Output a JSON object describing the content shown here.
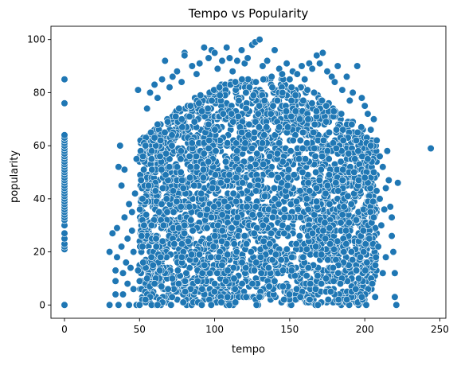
{
  "chart_data": {
    "type": "scatter",
    "title": "Tempo vs Popularity",
    "xlabel": "tempo",
    "ylabel": "popularity",
    "xlim": [
      -9,
      254
    ],
    "ylim": [
      -5,
      105
    ],
    "xticks": [
      0,
      50,
      100,
      150,
      200,
      250
    ],
    "yticks": [
      0,
      20,
      40,
      60,
      80,
      100
    ],
    "grid": false,
    "point_color": "#1f77b4",
    "point_edge_color": "#ffffff",
    "series": [
      {
        "points": [
          [
            0,
            0
          ],
          [
            0,
            21
          ],
          [
            0,
            22
          ],
          [
            0,
            23
          ],
          [
            0,
            25
          ],
          [
            0,
            27
          ],
          [
            0,
            30
          ],
          [
            0,
            32
          ],
          [
            0,
            33
          ],
          [
            0,
            34
          ],
          [
            0,
            35
          ],
          [
            0,
            36
          ],
          [
            0,
            37
          ],
          [
            0,
            38
          ],
          [
            0,
            39
          ],
          [
            0,
            40
          ],
          [
            0,
            41
          ],
          [
            0,
            42
          ],
          [
            0,
            43
          ],
          [
            0,
            44
          ],
          [
            0,
            45
          ],
          [
            0,
            46
          ],
          [
            0,
            47
          ],
          [
            0,
            48
          ],
          [
            0,
            49
          ],
          [
            0,
            50
          ],
          [
            0,
            51
          ],
          [
            0,
            52
          ],
          [
            0,
            53
          ],
          [
            0,
            54
          ],
          [
            0,
            55
          ],
          [
            0,
            56
          ],
          [
            0,
            57
          ],
          [
            0,
            58
          ],
          [
            0,
            59
          ],
          [
            0,
            60
          ],
          [
            0,
            61
          ],
          [
            0,
            62
          ],
          [
            0,
            63
          ],
          [
            0,
            64
          ],
          [
            0,
            76
          ],
          [
            0,
            85
          ],
          [
            30,
            0
          ],
          [
            30,
            20
          ],
          [
            32,
            27
          ],
          [
            34,
            4
          ],
          [
            34,
            9
          ],
          [
            34,
            13
          ],
          [
            35,
            18
          ],
          [
            35,
            29
          ],
          [
            36,
            0
          ],
          [
            36,
            52
          ],
          [
            37,
            60
          ],
          [
            38,
            45
          ],
          [
            38,
            22
          ],
          [
            39,
            12
          ],
          [
            39,
            4
          ],
          [
            40,
            51
          ],
          [
            40,
            33
          ],
          [
            41,
            16
          ],
          [
            42,
            8
          ],
          [
            42,
            25
          ],
          [
            43,
            38
          ],
          [
            43,
            0
          ],
          [
            44,
            14
          ],
          [
            45,
            28
          ],
          [
            45,
            35
          ],
          [
            46,
            6
          ],
          [
            46,
            20
          ],
          [
            47,
            42
          ],
          [
            48,
            0
          ],
          [
            48,
            55
          ],
          [
            49,
            81
          ],
          [
            49,
            13
          ],
          [
            50,
            0
          ],
          [
            51,
            47
          ],
          [
            52,
            22
          ],
          [
            53,
            61
          ],
          [
            55,
            74
          ],
          [
            57,
            80
          ],
          [
            60,
            83
          ],
          [
            62,
            78
          ],
          [
            65,
            85
          ],
          [
            67,
            92
          ],
          [
            70,
            82
          ],
          [
            72,
            86
          ],
          [
            75,
            88
          ],
          [
            78,
            84
          ],
          [
            80,
            95
          ],
          [
            80,
            94
          ],
          [
            85,
            90
          ],
          [
            88,
            87
          ],
          [
            90,
            91
          ],
          [
            93,
            97
          ],
          [
            96,
            93
          ],
          [
            98,
            96
          ],
          [
            100,
            95
          ],
          [
            102,
            89
          ],
          [
            105,
            92
          ],
          [
            108,
            97
          ],
          [
            110,
            93
          ],
          [
            112,
            88
          ],
          [
            115,
            92
          ],
          [
            118,
            96
          ],
          [
            120,
            91
          ],
          [
            122,
            93
          ],
          [
            125,
            98
          ],
          [
            127,
            99
          ],
          [
            130,
            100
          ],
          [
            132,
            90
          ],
          [
            135,
            92
          ],
          [
            138,
            86
          ],
          [
            140,
            96
          ],
          [
            143,
            89
          ],
          [
            145,
            87
          ],
          [
            148,
            91
          ],
          [
            150,
            85
          ],
          [
            152,
            88
          ],
          [
            155,
            87
          ],
          [
            158,
            90
          ],
          [
            160,
            85
          ],
          [
            163,
            91
          ],
          [
            165,
            89
          ],
          [
            168,
            94
          ],
          [
            170,
            91
          ],
          [
            172,
            95
          ],
          [
            175,
            88
          ],
          [
            178,
            86
          ],
          [
            180,
            84
          ],
          [
            182,
            90
          ],
          [
            185,
            81
          ],
          [
            188,
            86
          ],
          [
            190,
            77
          ],
          [
            192,
            80
          ],
          [
            195,
            90
          ],
          [
            198,
            78
          ],
          [
            200,
            75
          ],
          [
            202,
            72
          ],
          [
            204,
            66
          ],
          [
            206,
            70
          ],
          [
            208,
            62
          ],
          [
            210,
            56
          ],
          [
            212,
            52
          ],
          [
            214,
            44
          ],
          [
            215,
            58
          ],
          [
            216,
            47
          ],
          [
            217,
            37
          ],
          [
            218,
            26
          ],
          [
            218,
            33
          ],
          [
            219,
            20
          ],
          [
            220,
            12
          ],
          [
            220,
            3
          ],
          [
            221,
            0
          ],
          [
            222,
            46
          ],
          [
            244,
            59
          ],
          [
            205,
            8
          ],
          [
            207,
            15
          ],
          [
            209,
            22
          ],
          [
            211,
            30
          ],
          [
            213,
            36
          ],
          [
            214,
            18
          ],
          [
            212,
            12
          ],
          [
            210,
            40
          ],
          [
            206,
            33
          ],
          [
            203,
            25
          ],
          [
            198,
            3
          ],
          [
            201,
            0
          ],
          [
            196,
            10
          ],
          [
            194,
            6
          ],
          [
            197,
            18
          ],
          [
            199,
            28
          ],
          [
            200,
            48
          ],
          [
            202,
            55
          ],
          [
            204,
            60
          ],
          [
            206,
            50
          ],
          [
            55,
            10
          ],
          [
            57,
            3
          ],
          [
            59,
            15
          ],
          [
            61,
            25
          ],
          [
            63,
            35
          ],
          [
            56,
            45
          ],
          [
            58,
            55
          ],
          [
            60,
            63
          ],
          [
            62,
            68
          ],
          [
            54,
            60
          ],
          [
            52,
            40
          ],
          [
            53,
            30
          ],
          [
            54,
            2
          ],
          [
            58,
            0
          ],
          [
            60,
            8
          ],
          [
            62,
            0
          ],
          [
            64,
            18
          ],
          [
            66,
            30
          ],
          [
            68,
            40
          ],
          [
            64,
            62
          ]
        ]
      }
    ],
    "core_region": {
      "x_start": 50,
      "x_end": 208,
      "y_min": 0,
      "y_max": 86,
      "point_count": 3200
    }
  }
}
